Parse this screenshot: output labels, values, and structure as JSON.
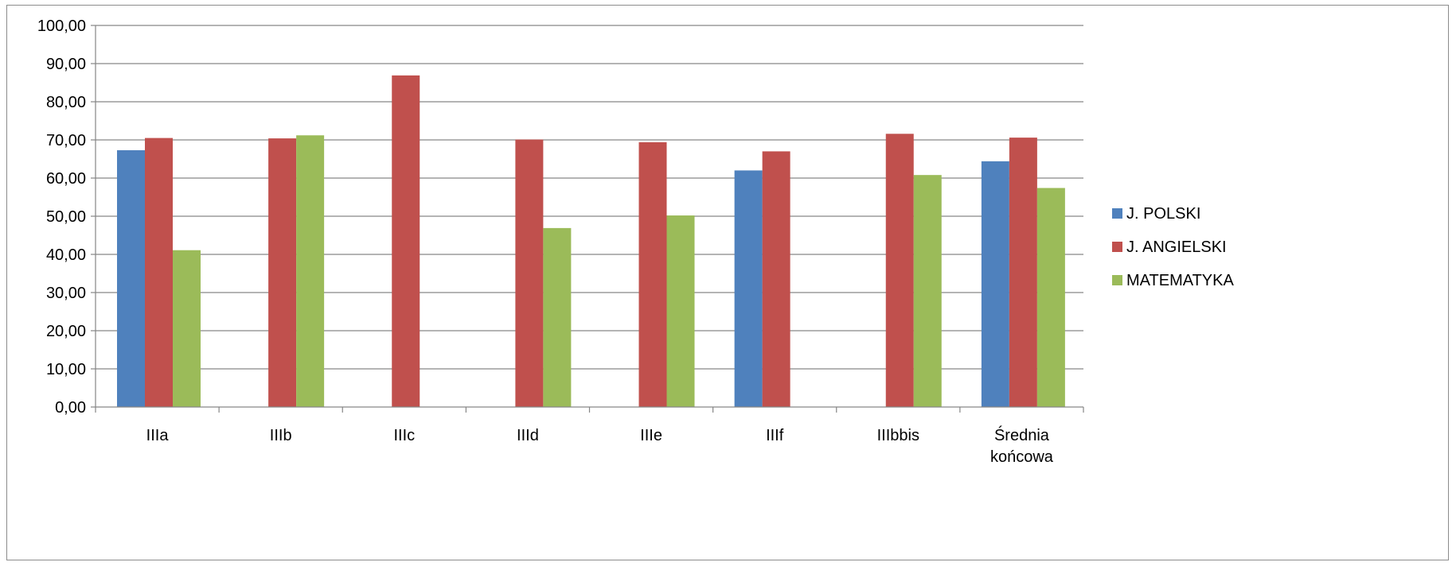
{
  "chart_data": {
    "type": "bar",
    "categories": [
      "IIIa",
      "IIIb",
      "IIIc",
      "IIId",
      "IIIe",
      "IIIf",
      "IIIbbis",
      "Średnia\nkońcowa"
    ],
    "series": [
      {
        "name": "J. POLSKI",
        "color": "#4F81BD",
        "values": [
          67.3,
          null,
          null,
          null,
          null,
          62.0,
          null,
          64.4
        ]
      },
      {
        "name": "J. ANGIELSKI",
        "color": "#C0504D",
        "values": [
          70.5,
          70.4,
          86.9,
          70.1,
          69.4,
          67.0,
          71.6,
          70.6
        ]
      },
      {
        "name": "MATEMATYKA",
        "color": "#9BBB59",
        "values": [
          41.1,
          71.2,
          null,
          46.9,
          50.2,
          null,
          60.8,
          57.4
        ]
      }
    ],
    "yticks": [
      "0,00",
      "10,00",
      "20,00",
      "30,00",
      "40,00",
      "50,00",
      "60,00",
      "70,00",
      "80,00",
      "90,00",
      "100,00"
    ],
    "ylim": [
      0,
      100
    ],
    "grid": true,
    "legend_position": "right",
    "title": "",
    "xlabel": "",
    "ylabel": ""
  }
}
